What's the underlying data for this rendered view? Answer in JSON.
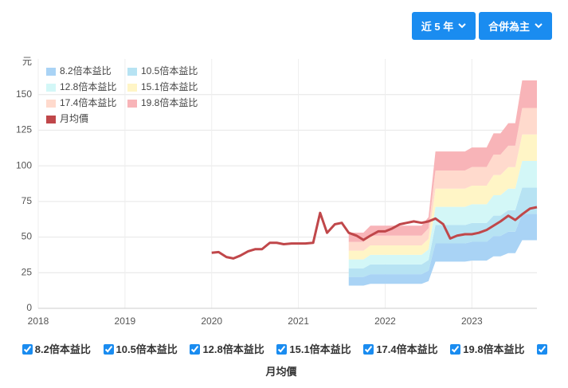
{
  "buttons": [
    "近 5 年",
    "合併為主"
  ],
  "chart_data": {
    "type": "area",
    "y_label": "元",
    "x": [
      2020.0,
      2020.08,
      2020.17,
      2020.25,
      2020.33,
      2020.42,
      2020.5,
      2020.58,
      2020.67,
      2020.75,
      2020.83,
      2020.92,
      2021.0,
      2021.08,
      2021.17,
      2021.25,
      2021.33,
      2021.42,
      2021.5,
      2021.58,
      2021.67,
      2021.75,
      2021.83,
      2021.92,
      2022.0,
      2022.08,
      2022.17,
      2022.25,
      2022.33,
      2022.42,
      2022.5,
      2022.58,
      2022.67,
      2022.75,
      2022.83,
      2022.92,
      2023.0,
      2023.08,
      2023.17,
      2023.25,
      2023.33,
      2023.42,
      2023.5,
      2023.58,
      2023.67,
      2023.75
    ],
    "xlim": [
      2018,
      2023.75
    ],
    "xticks": [
      2018,
      2019,
      2020,
      2021,
      2022,
      2023
    ],
    "ylim": [
      0,
      175
    ],
    "yticks": [
      0,
      25,
      50,
      75,
      100,
      125,
      150
    ],
    "grid": true,
    "legend": "top-left",
    "series": [
      {
        "name": "8.2倍本益比",
        "color": "#a9d3f5",
        "values": [
          null,
          null,
          null,
          null,
          null,
          null,
          null,
          null,
          null,
          null,
          null,
          null,
          null,
          null,
          null,
          null,
          null,
          null,
          null,
          22.0,
          22.0,
          22.0,
          24.0,
          24.0,
          24.0,
          24.0,
          24.0,
          24.0,
          24.0,
          24.0,
          26.5,
          45.6,
          45.6,
          45.6,
          45.6,
          45.6,
          46.7,
          46.7,
          46.7,
          50.8,
          50.8,
          53.8,
          53.8,
          66.3,
          66.3,
          66.3
        ]
      },
      {
        "name": "10.5倍本益比",
        "color": "#b7e3f3",
        "values": [
          null,
          null,
          null,
          null,
          null,
          null,
          null,
          null,
          null,
          null,
          null,
          null,
          null,
          null,
          null,
          null,
          null,
          null,
          null,
          28.1,
          28.1,
          28.1,
          30.8,
          30.8,
          30.8,
          30.8,
          30.8,
          30.8,
          30.8,
          30.8,
          33.9,
          58.4,
          58.4,
          58.4,
          58.4,
          58.4,
          59.9,
          59.9,
          59.9,
          65.1,
          65.1,
          68.9,
          68.9,
          84.8,
          84.8,
          84.8
        ]
      },
      {
        "name": "12.8倍本益比",
        "color": "#d3f7f7",
        "values": [
          null,
          null,
          null,
          null,
          null,
          null,
          null,
          null,
          null,
          null,
          null,
          null,
          null,
          null,
          null,
          null,
          null,
          null,
          null,
          34.3,
          34.3,
          34.3,
          37.5,
          37.5,
          37.5,
          37.5,
          37.5,
          37.5,
          37.5,
          37.5,
          41.3,
          71.2,
          71.2,
          71.2,
          71.2,
          71.2,
          73.0,
          73.0,
          73.0,
          79.4,
          79.4,
          84.0,
          84.0,
          103.4,
          103.4,
          103.4
        ]
      },
      {
        "name": "15.1倍本益比",
        "color": "#fff5c6",
        "values": [
          null,
          null,
          null,
          null,
          null,
          null,
          null,
          null,
          null,
          null,
          null,
          null,
          null,
          null,
          null,
          null,
          null,
          null,
          null,
          40.5,
          40.5,
          40.5,
          44.2,
          44.2,
          44.2,
          44.2,
          44.2,
          44.2,
          44.2,
          44.2,
          48.8,
          84.0,
          84.0,
          84.0,
          84.0,
          84.0,
          86.1,
          86.1,
          86.1,
          93.6,
          93.6,
          99.1,
          99.1,
          122.0,
          122.0,
          122.0
        ]
      },
      {
        "name": "17.4倍本益比",
        "color": "#ffdacd",
        "values": [
          null,
          null,
          null,
          null,
          null,
          null,
          null,
          null,
          null,
          null,
          null,
          null,
          null,
          null,
          null,
          null,
          null,
          null,
          null,
          46.6,
          46.6,
          46.6,
          51.0,
          51.0,
          51.0,
          51.0,
          51.0,
          51.0,
          51.0,
          51.0,
          56.2,
          96.7,
          96.7,
          96.7,
          96.7,
          96.7,
          99.2,
          99.2,
          99.2,
          107.9,
          107.9,
          114.1,
          114.1,
          140.6,
          140.6,
          140.6
        ]
      },
      {
        "name": "19.8倍本益比",
        "color": "#f8b4b8",
        "values": [
          null,
          null,
          null,
          null,
          null,
          null,
          null,
          null,
          null,
          null,
          null,
          null,
          null,
          null,
          null,
          null,
          null,
          null,
          null,
          53.1,
          53.1,
          53.1,
          58.0,
          58.0,
          58.0,
          58.0,
          58.0,
          58.0,
          58.0,
          58.0,
          64.0,
          110.1,
          110.1,
          110.1,
          110.1,
          110.1,
          112.9,
          112.9,
          112.9,
          122.8,
          122.8,
          129.9,
          129.9,
          160.0,
          160.0,
          160.0
        ]
      },
      {
        "name": "月均價",
        "type": "line",
        "color": "#c0474a",
        "values": [
          39,
          39.5,
          36,
          35,
          37,
          40,
          41.5,
          41.5,
          46,
          46,
          45,
          45.5,
          45.5,
          45.5,
          46,
          67,
          53,
          59,
          60,
          53,
          51,
          48,
          51,
          54,
          54,
          56,
          59,
          60,
          61,
          60,
          61,
          63,
          59,
          49,
          51,
          52,
          52,
          53,
          55,
          58,
          61,
          65,
          62,
          66,
          70,
          71
        ]
      }
    ]
  }
}
